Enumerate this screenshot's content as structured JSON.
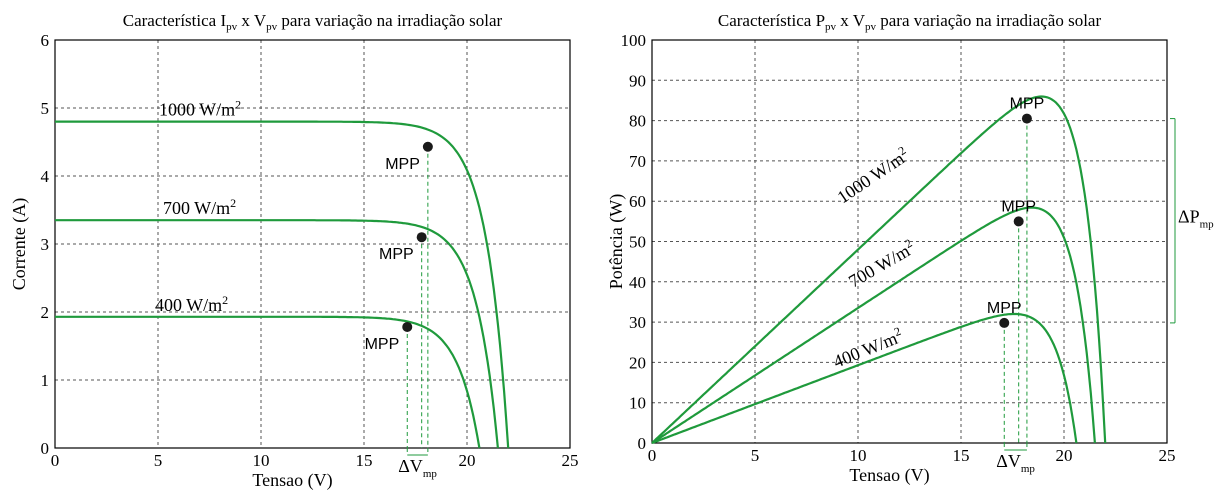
{
  "colors": {
    "curve": "#1f9a3c",
    "marker": "#1a1a1a"
  },
  "chart_data": [
    {
      "type": "line",
      "title_main": "Característica I",
      "title_sub1": "pv",
      "title_mid": " x V",
      "title_sub2": "pv",
      "title_tail": " para variação na irradiação solar",
      "xlabel": "Tensao (V)",
      "ylabel": "Corrente (A)",
      "xlim": [
        0,
        25
      ],
      "ylim": [
        0,
        6
      ],
      "xticks": [
        0,
        5,
        10,
        15,
        20,
        25
      ],
      "yticks": [
        0,
        1,
        2,
        3,
        4,
        5,
        6
      ],
      "grid": true,
      "series": [
        {
          "label": "1000 W/m",
          "sup": "2",
          "Isc": 4.8,
          "Voc": 22.0,
          "mpp": [
            18.1,
            4.43
          ]
        },
        {
          "label": "700 W/m",
          "sup": "2",
          "Isc": 3.35,
          "Voc": 21.5,
          "mpp": [
            17.8,
            3.1
          ]
        },
        {
          "label": "400 W/m",
          "sup": "2",
          "Isc": 1.93,
          "Voc": 20.6,
          "mpp": [
            17.1,
            1.78
          ]
        }
      ],
      "mpp_label": "MPP",
      "delta_label": "ΔV",
      "delta_sub": "mp"
    },
    {
      "type": "line",
      "title_main": "Característica P",
      "title_sub1": "pv",
      "title_mid": " x V",
      "title_sub2": "pv",
      "title_tail": " para variação na irradiação solar",
      "xlabel": "Tensao (V)",
      "ylabel": "Potência (W)",
      "xlim": [
        0,
        25
      ],
      "ylim": [
        0,
        100
      ],
      "xticks": [
        0,
        5,
        10,
        15,
        20,
        25
      ],
      "yticks": [
        0,
        10,
        20,
        30,
        40,
        50,
        60,
        70,
        80,
        90,
        100
      ],
      "grid": true,
      "series": [
        {
          "label": "1000 W/m",
          "sup": "2",
          "mpp": [
            18.2,
            80.5
          ],
          "Voc": 22.0
        },
        {
          "label": "700 W/m",
          "sup": "2",
          "mpp": [
            17.8,
            55.0
          ],
          "Voc": 21.5
        },
        {
          "label": "400 W/m",
          "sup": "2",
          "mpp": [
            17.1,
            29.8
          ],
          "Voc": 20.6
        }
      ],
      "mpp_label": "MPP",
      "delta_label": "ΔV",
      "delta_sub": "mp",
      "delta_p_label": "ΔP",
      "delta_p_sub": "mp"
    }
  ]
}
